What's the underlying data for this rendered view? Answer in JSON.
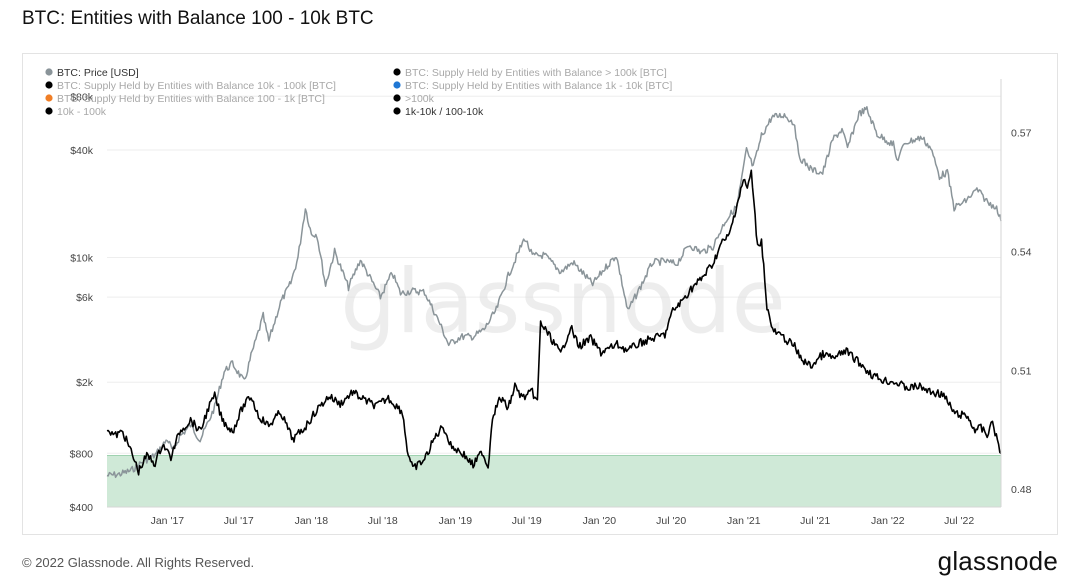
{
  "page": {
    "title": "BTC: Entities with Balance 100 - 10k BTC",
    "footer": "© 2022 Glassnode. All Rights Reserved.",
    "logo": "glassnode",
    "watermark": "glassnode"
  },
  "legend": [
    {
      "label": "BTC: Price [USD]",
      "color": "#8a9499",
      "faded": false
    },
    {
      "label": "BTC: Supply Held by Entities with Balance > 100k [BTC]",
      "color": "#000000",
      "faded": true
    },
    {
      "label": "BTC: Supply Held by Entities with Balance 10k - 100k [BTC]",
      "color": "#000000",
      "faded": true
    },
    {
      "label": "BTC: Supply Held by Entities with Balance 1k - 10k [BTC]",
      "color": "#1f77d4",
      "faded": true
    },
    {
      "label": "BTC: Supply Held by Entities with Balance 100 - 1k [BTC]",
      "color": "#f07e26",
      "faded": true
    },
    {
      "label": ">100k",
      "color": "#000000",
      "faded": true
    },
    {
      "label": "10k - 100k",
      "color": "#000000",
      "faded": true
    },
    {
      "label": "1k-10k / 100-10k",
      "color": "#000000",
      "faded": false
    }
  ],
  "chart_data": {
    "type": "line",
    "title": "BTC: Entities with Balance 100 - 10k BTC",
    "x_ticks": [
      "Jan '17",
      "Jul '17",
      "Jan '18",
      "Jul '18",
      "Jan '19",
      "Jul '19",
      "Jan '20",
      "Jul '20",
      "Jan '21",
      "Jul '21",
      "Jan '22",
      "Jul '22"
    ],
    "x_range": [
      "2016-08-01",
      "2022-10-15"
    ],
    "y_left": {
      "scale": "log",
      "ticks": [
        "$400",
        "$800",
        "$2k",
        "$6k",
        "$10k",
        "$40k",
        "$80k"
      ],
      "tick_values": [
        400,
        800,
        2000,
        6000,
        10000,
        40000,
        80000
      ],
      "range": [
        400,
        100000
      ]
    },
    "y_right": {
      "scale": "linear",
      "ticks": [
        "0.48",
        "0.51",
        "0.54",
        "0.57"
      ],
      "tick_values": [
        0.48,
        0.51,
        0.54,
        0.57
      ],
      "range": [
        0.4755,
        0.5835
      ]
    },
    "shaded_band": {
      "color": "#cfe9d7",
      "y_right_from": 0.4755,
      "y_right_to": 0.4885
    },
    "series": [
      {
        "name": "BTC: Price [USD]",
        "axis": "left",
        "color": "#8a9499",
        "points": [
          [
            "2016-08-01",
            600
          ],
          [
            "2016-09-01",
            610
          ],
          [
            "2016-10-01",
            640
          ],
          [
            "2016-11-01",
            720
          ],
          [
            "2016-12-01",
            780
          ],
          [
            "2017-01-01",
            960
          ],
          [
            "2017-01-15",
            820
          ],
          [
            "2017-02-01",
            990
          ],
          [
            "2017-03-01",
            1150
          ],
          [
            "2017-03-25",
            950
          ],
          [
            "2017-04-15",
            1200
          ],
          [
            "2017-05-01",
            1450
          ],
          [
            "2017-05-25",
            2300
          ],
          [
            "2017-06-15",
            2550
          ],
          [
            "2017-07-15",
            2000
          ],
          [
            "2017-08-01",
            2800
          ],
          [
            "2017-09-01",
            4700
          ],
          [
            "2017-09-15",
            3400
          ],
          [
            "2017-10-15",
            5600
          ],
          [
            "2017-11-10",
            7200
          ],
          [
            "2017-11-28",
            10000
          ],
          [
            "2017-12-17",
            19000
          ],
          [
            "2018-01-01",
            13500
          ],
          [
            "2018-01-15",
            13500
          ],
          [
            "2018-02-06",
            7000
          ],
          [
            "2018-03-01",
            10800
          ],
          [
            "2018-04-05",
            6800
          ],
          [
            "2018-05-05",
            9700
          ],
          [
            "2018-06-25",
            6000
          ],
          [
            "2018-07-25",
            8200
          ],
          [
            "2018-08-15",
            6300
          ],
          [
            "2018-09-15",
            6500
          ],
          [
            "2018-10-15",
            6400
          ],
          [
            "2018-11-20",
            4400
          ],
          [
            "2018-12-15",
            3250
          ],
          [
            "2019-01-15",
            3600
          ],
          [
            "2019-02-15",
            3600
          ],
          [
            "2019-03-15",
            3950
          ],
          [
            "2019-04-15",
            5100
          ],
          [
            "2019-05-15",
            7900
          ],
          [
            "2019-06-26",
            12900
          ],
          [
            "2019-07-15",
            10200
          ],
          [
            "2019-08-15",
            10300
          ],
          [
            "2019-09-25",
            8300
          ],
          [
            "2019-10-26",
            9400
          ],
          [
            "2019-12-15",
            7100
          ],
          [
            "2020-01-15",
            8700
          ],
          [
            "2020-02-13",
            10300
          ],
          [
            "2020-03-13",
            5000
          ],
          [
            "2020-04-15",
            6900
          ],
          [
            "2020-05-15",
            9400
          ],
          [
            "2020-06-15",
            9500
          ],
          [
            "2020-07-15",
            9200
          ],
          [
            "2020-08-15",
            11800
          ],
          [
            "2020-09-15",
            10700
          ],
          [
            "2020-10-15",
            11500
          ],
          [
            "2020-11-15",
            16000
          ],
          [
            "2020-12-15",
            19400
          ],
          [
            "2021-01-08",
            40000
          ],
          [
            "2021-01-25",
            32000
          ],
          [
            "2021-02-15",
            48000
          ],
          [
            "2021-03-13",
            61000
          ],
          [
            "2021-04-14",
            63000
          ],
          [
            "2021-05-10",
            56000
          ],
          [
            "2021-05-20",
            37000
          ],
          [
            "2021-06-22",
            31000
          ],
          [
            "2021-07-20",
            29800
          ],
          [
            "2021-08-15",
            46000
          ],
          [
            "2021-09-07",
            52000
          ],
          [
            "2021-09-21",
            41000
          ],
          [
            "2021-10-20",
            64000
          ],
          [
            "2021-11-09",
            67500
          ],
          [
            "2021-12-05",
            49000
          ],
          [
            "2022-01-15",
            43000
          ],
          [
            "2022-01-24",
            35000
          ],
          [
            "2022-02-15",
            44000
          ],
          [
            "2022-03-28",
            47000
          ],
          [
            "2022-04-20",
            41000
          ],
          [
            "2022-05-12",
            28500
          ],
          [
            "2022-06-01",
            30000
          ],
          [
            "2022-06-18",
            19000
          ],
          [
            "2022-07-15",
            20500
          ],
          [
            "2022-08-15",
            24000
          ],
          [
            "2022-09-15",
            20000
          ],
          [
            "2022-10-01",
            19500
          ],
          [
            "2022-10-15",
            16000
          ]
        ]
      },
      {
        "name": "1k-10k / 100-10k",
        "axis": "right",
        "color": "#000000",
        "points": [
          [
            "2016-08-01",
            0.4955
          ],
          [
            "2016-08-20",
            0.4935
          ],
          [
            "2016-09-10",
            0.4945
          ],
          [
            "2016-10-01",
            0.4895
          ],
          [
            "2016-10-20",
            0.4845
          ],
          [
            "2016-11-10",
            0.4885
          ],
          [
            "2016-12-01",
            0.4865
          ],
          [
            "2016-12-20",
            0.4915
          ],
          [
            "2017-01-10",
            0.488
          ],
          [
            "2017-02-01",
            0.4945
          ],
          [
            "2017-03-01",
            0.4975
          ],
          [
            "2017-03-25",
            0.4945
          ],
          [
            "2017-04-15",
            0.5005
          ],
          [
            "2017-05-01",
            0.5035
          ],
          [
            "2017-05-20",
            0.4975
          ],
          [
            "2017-06-15",
            0.4945
          ],
          [
            "2017-07-10",
            0.5005
          ],
          [
            "2017-08-01",
            0.5035
          ],
          [
            "2017-08-20",
            0.4985
          ],
          [
            "2017-09-15",
            0.496
          ],
          [
            "2017-10-15",
            0.4995
          ],
          [
            "2017-11-15",
            0.4925
          ],
          [
            "2017-12-15",
            0.4955
          ],
          [
            "2018-01-15",
            0.5
          ],
          [
            "2018-02-15",
            0.5035
          ],
          [
            "2018-03-15",
            0.5015
          ],
          [
            "2018-04-15",
            0.5045
          ],
          [
            "2018-05-15",
            0.5025
          ],
          [
            "2018-06-15",
            0.501
          ],
          [
            "2018-07-15",
            0.503
          ],
          [
            "2018-08-20",
            0.4995
          ],
          [
            "2018-09-01",
            0.49
          ],
          [
            "2018-09-15",
            0.485
          ],
          [
            "2018-10-15",
            0.4875
          ],
          [
            "2018-11-10",
            0.493
          ],
          [
            "2018-12-01",
            0.496
          ],
          [
            "2018-12-20",
            0.491
          ],
          [
            "2019-01-20",
            0.489
          ],
          [
            "2019-02-15",
            0.486
          ],
          [
            "2019-03-10",
            0.4895
          ],
          [
            "2019-03-25",
            0.4855
          ],
          [
            "2019-04-05",
            0.4985
          ],
          [
            "2019-04-25",
            0.503
          ],
          [
            "2019-05-15",
            0.5005
          ],
          [
            "2019-06-01",
            0.506
          ],
          [
            "2019-06-20",
            0.503
          ],
          [
            "2019-07-15",
            0.5045
          ],
          [
            "2019-07-28",
            0.502
          ],
          [
            "2019-08-05",
            0.522
          ],
          [
            "2019-09-01",
            0.518
          ],
          [
            "2019-09-25",
            0.514
          ],
          [
            "2019-10-20",
            0.521
          ],
          [
            "2019-11-10",
            0.516
          ],
          [
            "2019-12-10",
            0.518
          ],
          [
            "2020-01-05",
            0.5145
          ],
          [
            "2020-02-15",
            0.5165
          ],
          [
            "2020-03-13",
            0.515
          ],
          [
            "2020-04-15",
            0.517
          ],
          [
            "2020-05-15",
            0.518
          ],
          [
            "2020-06-15",
            0.519
          ],
          [
            "2020-07-05",
            0.525
          ],
          [
            "2020-07-25",
            0.527
          ],
          [
            "2020-08-20",
            0.5305
          ],
          [
            "2020-09-15",
            0.533
          ],
          [
            "2020-10-15",
            0.537
          ],
          [
            "2020-11-05",
            0.542
          ],
          [
            "2020-11-25",
            0.544
          ],
          [
            "2020-12-15",
            0.552
          ],
          [
            "2020-12-31",
            0.558
          ],
          [
            "2021-01-10",
            0.556
          ],
          [
            "2021-01-20",
            0.56
          ],
          [
            "2021-02-05",
            0.541
          ],
          [
            "2021-02-15",
            0.543
          ],
          [
            "2021-03-01",
            0.526
          ],
          [
            "2021-03-15",
            0.52
          ],
          [
            "2021-04-15",
            0.518
          ],
          [
            "2021-05-10",
            0.516
          ],
          [
            "2021-05-25",
            0.513
          ],
          [
            "2021-06-20",
            0.511
          ],
          [
            "2021-07-20",
            0.514
          ],
          [
            "2021-08-20",
            0.513
          ],
          [
            "2021-09-15",
            0.515
          ],
          [
            "2021-10-20",
            0.512
          ],
          [
            "2021-11-20",
            0.509
          ],
          [
            "2021-12-20",
            0.5075
          ],
          [
            "2022-01-20",
            0.507
          ],
          [
            "2022-02-20",
            0.5055
          ],
          [
            "2022-03-20",
            0.506
          ],
          [
            "2022-04-20",
            0.5045
          ],
          [
            "2022-05-20",
            0.504
          ],
          [
            "2022-06-20",
            0.499
          ],
          [
            "2022-07-20",
            0.4985
          ],
          [
            "2022-08-10",
            0.495
          ],
          [
            "2022-08-25",
            0.4955
          ],
          [
            "2022-09-10",
            0.4935
          ],
          [
            "2022-09-20",
            0.497
          ],
          [
            "2022-09-30",
            0.4945
          ],
          [
            "2022-10-15",
            0.489
          ]
        ]
      }
    ]
  }
}
